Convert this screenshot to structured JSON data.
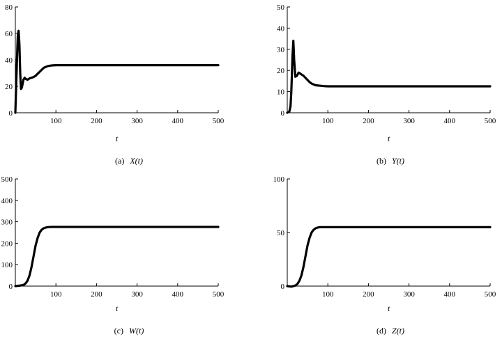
{
  "chart_data": [
    {
      "type": "line",
      "caption_prefix": "(a)",
      "caption_expr": "X(t)",
      "xlabel": "t",
      "ylabel": "",
      "xlim": [
        0,
        500
      ],
      "ylim": [
        0,
        80
      ],
      "xticks": [
        100,
        200,
        300,
        400,
        500
      ],
      "yticks": [
        0,
        20,
        40,
        60,
        80
      ],
      "series": [
        {
          "x": [
            0,
            2,
            4,
            6,
            8,
            10,
            12,
            14,
            16,
            18,
            20,
            23,
            26,
            30,
            35,
            40,
            45,
            50,
            55,
            60,
            65,
            70,
            80,
            90,
            100,
            120,
            150,
            200,
            300,
            400,
            500
          ],
          "y": [
            0,
            20,
            40,
            58,
            62,
            52,
            30,
            18,
            19,
            22,
            25,
            26.5,
            25.5,
            25,
            26,
            26.5,
            27,
            28,
            29.5,
            31,
            32.5,
            34,
            35.3,
            35.8,
            36,
            36,
            36,
            36,
            36,
            36,
            36
          ]
        }
      ]
    },
    {
      "type": "line",
      "caption_prefix": "(b)",
      "caption_expr": "Y(t)",
      "xlabel": "t",
      "ylabel": "",
      "xlim": [
        0,
        500
      ],
      "ylim": [
        0,
        50
      ],
      "xticks": [
        100,
        200,
        300,
        400,
        500
      ],
      "yticks": [
        0,
        10,
        20,
        30,
        40,
        50
      ],
      "series": [
        {
          "x": [
            0,
            5,
            8,
            10,
            13,
            15,
            17,
            20,
            24,
            28,
            32,
            36,
            40,
            45,
            50,
            55,
            60,
            70,
            80,
            90,
            100,
            120,
            150,
            200,
            300,
            400,
            500
          ],
          "y": [
            0,
            0.5,
            3,
            10,
            27,
            34,
            25,
            17,
            17.5,
            19,
            18.5,
            18,
            17.5,
            16.5,
            15.5,
            14.5,
            13.8,
            13,
            12.8,
            12.6,
            12.5,
            12.5,
            12.5,
            12.5,
            12.5,
            12.5,
            12.5
          ]
        }
      ]
    },
    {
      "type": "line",
      "caption_prefix": "(c)",
      "caption_expr": "W(t)",
      "xlabel": "t",
      "ylabel": "",
      "xlim": [
        0,
        500
      ],
      "ylim": [
        0,
        500
      ],
      "xticks": [
        100,
        200,
        300,
        400,
        500
      ],
      "yticks": [
        0,
        100,
        200,
        300,
        400,
        500
      ],
      "series": [
        {
          "x": [
            0,
            10,
            20,
            25,
            30,
            35,
            40,
            45,
            50,
            55,
            60,
            65,
            70,
            75,
            80,
            90,
            100,
            120,
            150,
            200,
            300,
            400,
            500
          ],
          "y": [
            0,
            2,
            5,
            12,
            25,
            50,
            90,
            140,
            190,
            225,
            250,
            263,
            270,
            273,
            275,
            276,
            276,
            276,
            276,
            276,
            276,
            276,
            276
          ]
        }
      ]
    },
    {
      "type": "line",
      "caption_prefix": "(d)",
      "caption_expr": "Z(t)",
      "xlabel": "t",
      "ylabel": "",
      "xlim": [
        0,
        500
      ],
      "ylim": [
        0,
        100
      ],
      "xticks": [
        100,
        200,
        300,
        400,
        500
      ],
      "yticks": [
        0,
        50,
        100
      ],
      "series": [
        {
          "x": [
            0,
            10,
            20,
            25,
            30,
            35,
            40,
            45,
            50,
            55,
            60,
            65,
            70,
            75,
            80,
            90,
            100,
            120,
            150,
            200,
            300,
            400,
            500
          ],
          "y": [
            0,
            -0.5,
            0.5,
            2,
            5,
            10,
            18,
            28,
            38,
            45,
            50,
            52.5,
            54,
            54.6,
            55,
            55,
            55,
            55,
            55,
            55,
            55,
            55,
            55
          ]
        }
      ]
    }
  ]
}
